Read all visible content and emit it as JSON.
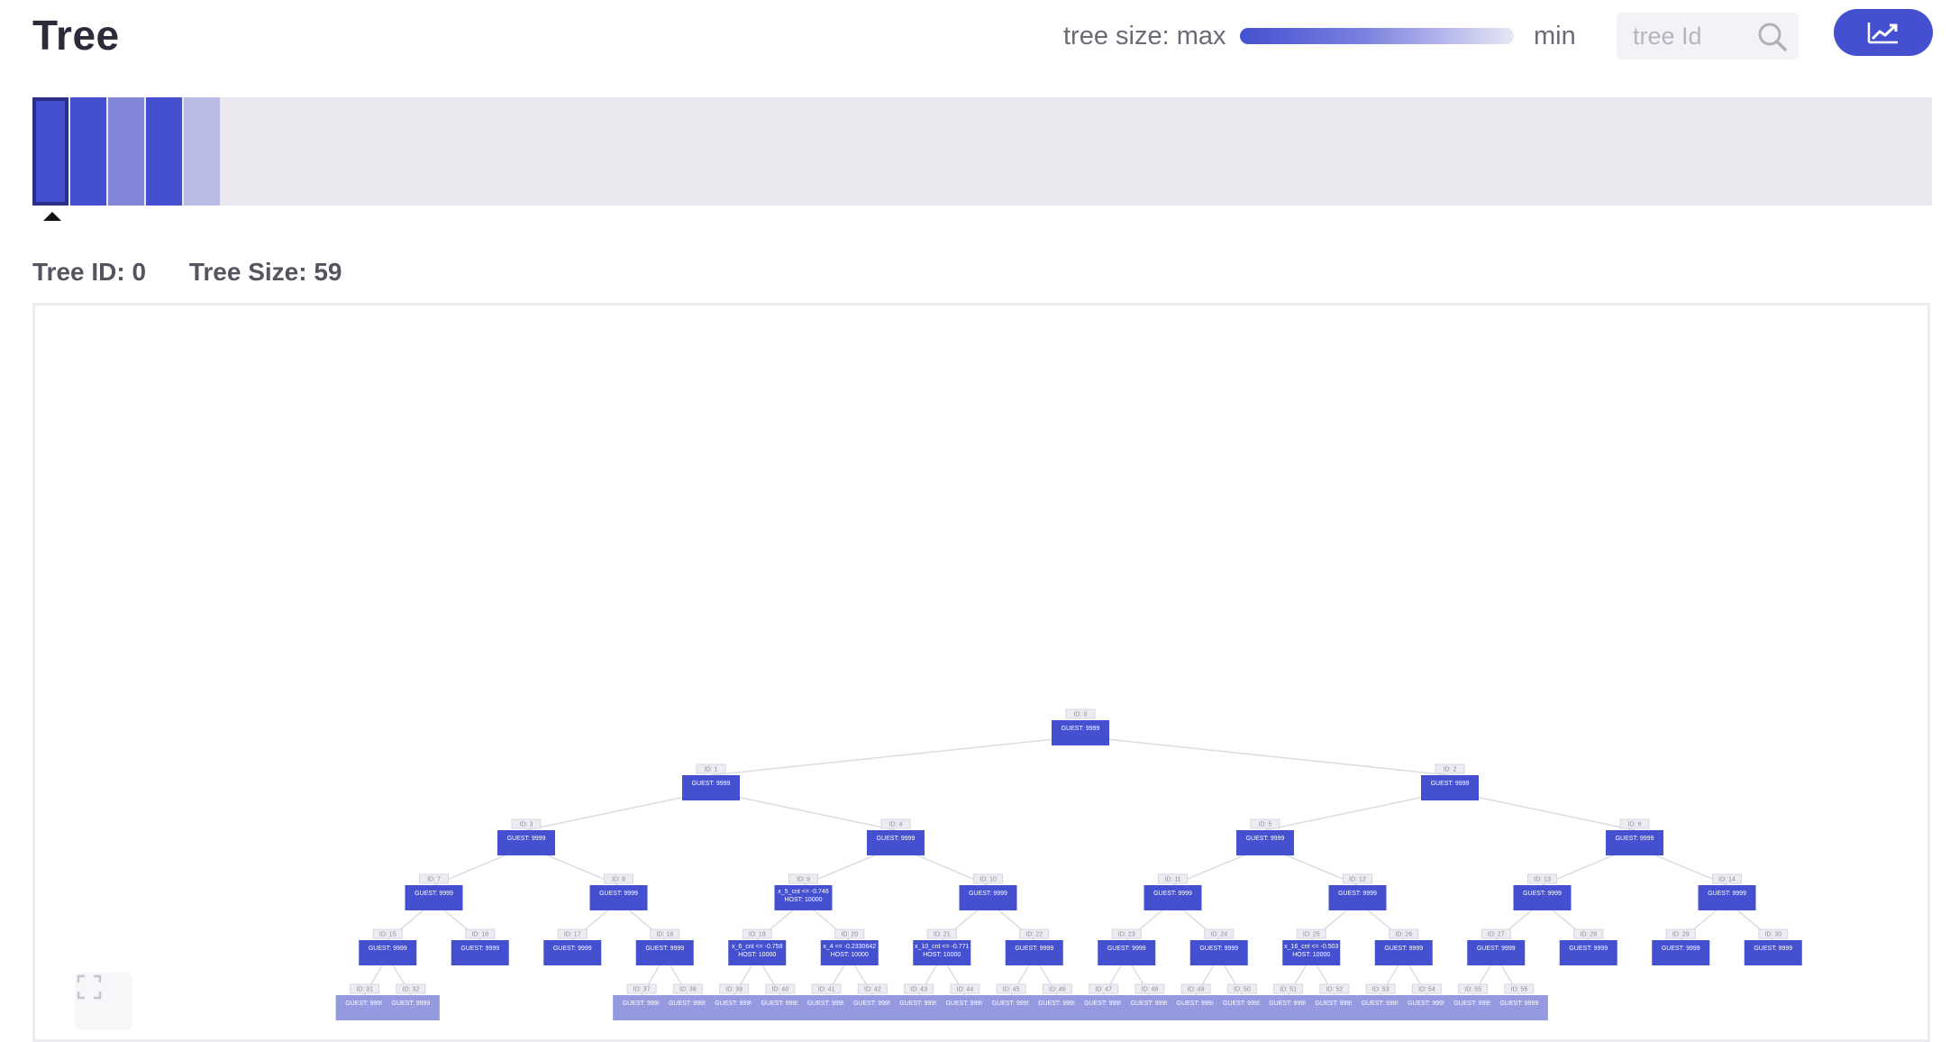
{
  "header": {
    "title": "Tree",
    "legend_max_label": "tree size: max",
    "legend_min_label": "min",
    "search_placeholder": "tree Id",
    "search_value": "",
    "search_icon": "search-icon",
    "chart_button_icon": "trend-chart-icon"
  },
  "colors": {
    "accent": "#4450cf",
    "accent_mid": "#8085d8",
    "accent_light": "#b9bbe4",
    "leaf": "#9499e0",
    "strip_bg": "#e8e8ee"
  },
  "tree_strip": [
    {
      "id": 0,
      "color": "#4450cf",
      "selected": true
    },
    {
      "id": 1,
      "color": "#4450cf",
      "selected": false
    },
    {
      "id": 2,
      "color": "#8085d8",
      "selected": false
    },
    {
      "id": 3,
      "color": "#4450cf",
      "selected": false
    },
    {
      "id": 4,
      "color": "#b9bbe4",
      "selected": false
    }
  ],
  "tree_info": {
    "tree_id_label": "Tree ID: 0",
    "tree_size_label": "Tree Size: 59"
  },
  "tree": {
    "nodes": [
      {
        "id": "0",
        "depth": 0,
        "label": "ID: 0",
        "text": [
          "GUEST: 9999"
        ]
      },
      {
        "id": "1",
        "depth": 1,
        "parent": "0",
        "label": "ID: 1",
        "text": [
          "GUEST: 9999"
        ]
      },
      {
        "id": "2",
        "depth": 1,
        "parent": "0",
        "label": "ID: 2",
        "text": [
          "GUEST: 9999"
        ]
      },
      {
        "id": "3",
        "depth": 2,
        "parent": "1",
        "label": "ID: 3",
        "text": [
          "GUEST: 9999"
        ]
      },
      {
        "id": "4",
        "depth": 2,
        "parent": "1",
        "label": "ID: 4",
        "text": [
          "GUEST: 9999"
        ]
      },
      {
        "id": "5",
        "depth": 2,
        "parent": "2",
        "label": "ID: 5",
        "text": [
          "GUEST: 9999"
        ]
      },
      {
        "id": "6",
        "depth": 2,
        "parent": "2",
        "label": "ID: 6",
        "text": [
          "GUEST: 9999"
        ]
      },
      {
        "id": "7",
        "depth": 3,
        "parent": "3",
        "label": "ID: 7",
        "text": [
          "GUEST: 9999"
        ]
      },
      {
        "id": "8",
        "depth": 3,
        "parent": "3",
        "label": "ID: 8",
        "text": [
          "GUEST: 9999"
        ]
      },
      {
        "id": "9",
        "depth": 3,
        "parent": "4",
        "label": "ID: 9",
        "text": [
          "x_5_cnt <= -0.746",
          "HOST: 10000"
        ]
      },
      {
        "id": "10",
        "depth": 3,
        "parent": "4",
        "label": "ID: 10",
        "text": [
          "GUEST: 9999"
        ]
      },
      {
        "id": "11",
        "depth": 3,
        "parent": "5",
        "label": "ID: 11",
        "text": [
          "GUEST: 9999"
        ]
      },
      {
        "id": "12",
        "depth": 3,
        "parent": "5",
        "label": "ID: 12",
        "text": [
          "GUEST: 9999"
        ]
      },
      {
        "id": "13",
        "depth": 3,
        "parent": "6",
        "label": "ID: 13",
        "text": [
          "GUEST: 9999"
        ]
      },
      {
        "id": "14",
        "depth": 3,
        "parent": "6",
        "label": "ID: 14",
        "text": [
          "GUEST: 9999"
        ]
      },
      {
        "id": "15",
        "depth": 4,
        "parent": "7",
        "label": "ID: 15",
        "text": [
          "GUEST: 9999"
        ]
      },
      {
        "id": "16",
        "depth": 4,
        "parent": "7",
        "label": "ID: 16",
        "text": [
          "GUEST: 9999"
        ]
      },
      {
        "id": "17",
        "depth": 4,
        "parent": "8",
        "label": "ID: 17",
        "text": [
          "GUEST: 9999"
        ]
      },
      {
        "id": "18",
        "depth": 4,
        "parent": "8",
        "label": "ID: 18",
        "text": [
          "GUEST: 9999"
        ]
      },
      {
        "id": "19",
        "depth": 4,
        "parent": "9",
        "label": "ID: 19",
        "text": [
          "x_6_cnt <= -0.758",
          "HOST: 10000"
        ]
      },
      {
        "id": "20",
        "depth": 4,
        "parent": "9",
        "label": "ID: 20",
        "text": [
          "x_4 <= -0.2330642",
          "HOST: 10000"
        ]
      },
      {
        "id": "21",
        "depth": 4,
        "parent": "10",
        "label": "ID: 21",
        "text": [
          "x_10_cnt <= -0.771",
          "HOST: 10000"
        ]
      },
      {
        "id": "22",
        "depth": 4,
        "parent": "10",
        "label": "ID: 22",
        "text": [
          "GUEST: 9999"
        ]
      },
      {
        "id": "23",
        "depth": 4,
        "parent": "11",
        "label": "ID: 23",
        "text": [
          "GUEST: 9999"
        ]
      },
      {
        "id": "24",
        "depth": 4,
        "parent": "11",
        "label": "ID: 24",
        "text": [
          "GUEST: 9999"
        ]
      },
      {
        "id": "25",
        "depth": 4,
        "parent": "12",
        "label": "ID: 25",
        "text": [
          "x_16_cnt <= -0.503",
          "HOST: 10000"
        ]
      },
      {
        "id": "26",
        "depth": 4,
        "parent": "12",
        "label": "ID: 26",
        "text": [
          "GUEST: 9999"
        ]
      },
      {
        "id": "27",
        "depth": 4,
        "parent": "13",
        "label": "ID: 27",
        "text": [
          "GUEST: 9999"
        ]
      },
      {
        "id": "28",
        "depth": 4,
        "parent": "13",
        "label": "ID: 28",
        "text": [
          "GUEST: 9999"
        ]
      },
      {
        "id": "29",
        "depth": 4,
        "parent": "14",
        "label": "ID: 29",
        "text": [
          "GUEST: 9999"
        ]
      },
      {
        "id": "30",
        "depth": 4,
        "parent": "14",
        "label": "ID: 30",
        "text": [
          "GUEST: 9999"
        ]
      },
      {
        "id": "31",
        "depth": 5,
        "parent": "15",
        "label": "ID: 31",
        "text": [
          "GUEST: 9999"
        ]
      },
      {
        "id": "32",
        "depth": 5,
        "parent": "15",
        "label": "ID: 32",
        "text": [
          "GUEST: 9999"
        ]
      },
      {
        "id": "37",
        "depth": 5,
        "parent": "18",
        "label": "ID: 37",
        "text": [
          "GUEST: 9999"
        ]
      },
      {
        "id": "38",
        "depth": 5,
        "parent": "18",
        "label": "ID: 38",
        "text": [
          "GUEST: 9999"
        ]
      },
      {
        "id": "39",
        "depth": 5,
        "parent": "19",
        "label": "ID: 39",
        "text": [
          "GUEST: 9999"
        ]
      },
      {
        "id": "40",
        "depth": 5,
        "parent": "19",
        "label": "ID: 40",
        "text": [
          "GUEST: 9999"
        ]
      },
      {
        "id": "41",
        "depth": 5,
        "parent": "20",
        "label": "ID: 41",
        "text": [
          "GUEST: 9999"
        ]
      },
      {
        "id": "42",
        "depth": 5,
        "parent": "20",
        "label": "ID: 42",
        "text": [
          "GUEST: 9999"
        ]
      },
      {
        "id": "43",
        "depth": 5,
        "parent": "21",
        "label": "ID: 43",
        "text": [
          "GUEST: 9999"
        ]
      },
      {
        "id": "44",
        "depth": 5,
        "parent": "21",
        "label": "ID: 44",
        "text": [
          "GUEST: 9999"
        ]
      },
      {
        "id": "45",
        "depth": 5,
        "parent": "22",
        "label": "ID: 45",
        "text": [
          "GUEST: 9999"
        ]
      },
      {
        "id": "46",
        "depth": 5,
        "parent": "22",
        "label": "ID: 46",
        "text": [
          "GUEST: 9999"
        ]
      },
      {
        "id": "47",
        "depth": 5,
        "parent": "23",
        "label": "ID: 47",
        "text": [
          "GUEST: 9999"
        ]
      },
      {
        "id": "48",
        "depth": 5,
        "parent": "23",
        "label": "ID: 48",
        "text": [
          "GUEST: 9999"
        ]
      },
      {
        "id": "49",
        "depth": 5,
        "parent": "24",
        "label": "ID: 49",
        "text": [
          "GUEST: 9999"
        ]
      },
      {
        "id": "50",
        "depth": 5,
        "parent": "24",
        "label": "ID: 50",
        "text": [
          "GUEST: 9999"
        ]
      },
      {
        "id": "51",
        "depth": 5,
        "parent": "25",
        "label": "ID: 51",
        "text": [
          "GUEST: 9999"
        ]
      },
      {
        "id": "52",
        "depth": 5,
        "parent": "25",
        "label": "ID: 52",
        "text": [
          "GUEST: 9999"
        ]
      },
      {
        "id": "53",
        "depth": 5,
        "parent": "26",
        "label": "ID: 53",
        "text": [
          "GUEST: 9999"
        ]
      },
      {
        "id": "54",
        "depth": 5,
        "parent": "26",
        "label": "ID: 54",
        "text": [
          "GUEST: 9999"
        ]
      },
      {
        "id": "55",
        "depth": 5,
        "parent": "27",
        "label": "ID: 55",
        "text": [
          "GUEST: 9999"
        ]
      },
      {
        "id": "56",
        "depth": 5,
        "parent": "27",
        "label": "ID: 56",
        "text": [
          "GUEST: 9999"
        ]
      }
    ]
  },
  "canvas": {
    "expand_icon": "expand-icon"
  }
}
